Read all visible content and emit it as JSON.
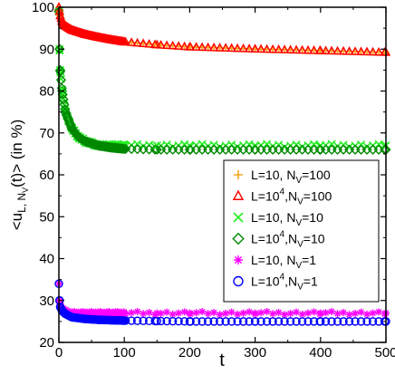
{
  "chart_data": {
    "type": "scatter",
    "xlabel": "t",
    "ylabel_parts": {
      "pre": "<u",
      "sub": "L, N",
      "subsub": "V",
      "post": "(t)> (in %)"
    },
    "xlim": [
      0,
      500
    ],
    "ylim": [
      20,
      100
    ],
    "x_ticks": [
      0,
      100,
      200,
      300,
      400,
      500
    ],
    "y_ticks": [
      20,
      30,
      40,
      50,
      60,
      70,
      80,
      90,
      100
    ],
    "grid": false,
    "legend_position": "bottom-right",
    "series": [
      {
        "name": "L=10, N_V=100",
        "legend": {
          "base": "L=10, N",
          "sub": "V",
          "tail": "=100"
        },
        "marker": "plus",
        "color": "#f5a623",
        "x": [
          0,
          1,
          2,
          5,
          10,
          20,
          40,
          60,
          80,
          100,
          150,
          200,
          300,
          400,
          500
        ],
        "y": [
          100,
          99,
          98,
          96.5,
          95.5,
          94.5,
          93.5,
          92.8,
          92.2,
          91.7,
          91,
          90.5,
          90,
          89.6,
          89.2
        ]
      },
      {
        "name": "L=10^4,N_V=100",
        "legend": {
          "base": "L=10",
          "sup": "4",
          "mid": ",N",
          "sub": "V",
          "tail": "=100"
        },
        "marker": "triangle",
        "color": "#ff0000",
        "x": [
          0,
          1,
          2,
          5,
          10,
          20,
          40,
          60,
          80,
          100,
          150,
          200,
          300,
          400,
          500
        ],
        "y": [
          100,
          99,
          98,
          96.5,
          95.5,
          94.5,
          93.5,
          92.8,
          92.2,
          91.7,
          91,
          90.5,
          90,
          89.6,
          89.2
        ]
      },
      {
        "name": "L=10, N_V=10",
        "legend": {
          "base": "L=10, N",
          "sub": "V",
          "tail": "=10"
        },
        "marker": "x",
        "color": "#22ee22",
        "x": [
          0,
          1,
          2,
          5,
          10,
          20,
          30,
          40,
          60,
          80,
          100,
          150,
          200,
          300,
          400,
          500
        ],
        "y": [
          99,
          90,
          85,
          80,
          75,
          71,
          69,
          68,
          67,
          67,
          67,
          67,
          67,
          67,
          67,
          67
        ]
      },
      {
        "name": "L=10^4,N_V=10",
        "legend": {
          "base": "L=10",
          "sup": "4",
          "mid": ",N",
          "sub": "V",
          "tail": "=10"
        },
        "marker": "diamond",
        "color": "#008800",
        "x": [
          0,
          1,
          2,
          5,
          10,
          20,
          30,
          40,
          60,
          80,
          100,
          150,
          200,
          300,
          400,
          500
        ],
        "y": [
          99,
          90,
          85,
          80,
          75,
          71,
          69,
          68,
          67,
          66.5,
          66.2,
          66,
          66,
          66,
          66,
          66
        ]
      },
      {
        "name": "L=10, N_V=1",
        "legend": {
          "base": "L=10, N",
          "sub": "V",
          "tail": "=1"
        },
        "marker": "star",
        "color": "#ff00ff",
        "x": [
          0,
          1,
          2,
          5,
          10,
          20,
          40,
          60,
          80,
          100,
          150,
          200,
          300,
          400,
          500
        ],
        "y": [
          34,
          30,
          29,
          28,
          27.5,
          27,
          27,
          27,
          27,
          27,
          27,
          27,
          27,
          27,
          27
        ]
      },
      {
        "name": "L=10^4,N_V=1",
        "legend": {
          "base": "L=10",
          "sup": "4",
          "mid": ",N",
          "sub": "V",
          "tail": "=1"
        },
        "marker": "circle",
        "color": "#0000ff",
        "x": [
          0,
          1,
          2,
          5,
          10,
          20,
          40,
          60,
          80,
          100,
          150,
          200,
          300,
          400,
          500
        ],
        "y": [
          34,
          30,
          28.5,
          27.5,
          26.8,
          26,
          25.6,
          25.4,
          25.3,
          25.2,
          25.1,
          25,
          25,
          25,
          25
        ]
      }
    ]
  }
}
